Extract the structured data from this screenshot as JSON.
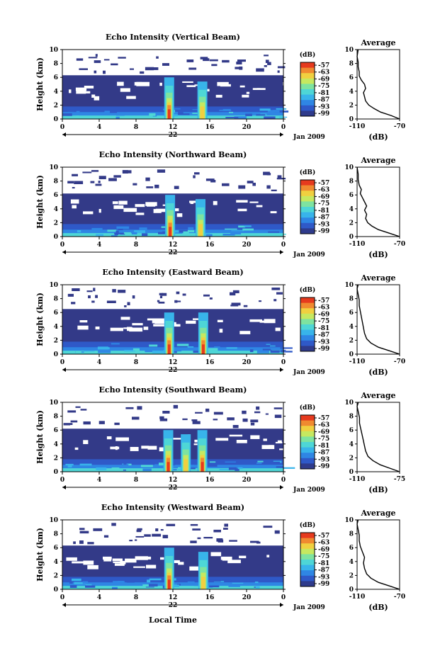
{
  "figure": {
    "x_axis_label": "Local Time",
    "date_label": "Jan 2009",
    "day_label": "22"
  },
  "colors": {
    "background": "#ffffff",
    "plot_fill": "#333a88",
    "scale": [
      "#2f3b8c",
      "#2f59c8",
      "#2f86e4",
      "#38b4ea",
      "#4ed6d6",
      "#7ee3a0",
      "#c6e860",
      "#f0d040",
      "#f08a30",
      "#e63a1e"
    ]
  },
  "chart_data": [
    {
      "type": "heatmap",
      "title": "Echo Intensity (Vertical Beam)",
      "ylabel": "Height (km)",
      "xlabel": "Local Time",
      "x_ticks": [
        "0",
        "4",
        "8",
        "12",
        "16",
        "20",
        "0"
      ],
      "xlim": [
        0,
        24
      ],
      "y_ticks": [
        "0",
        "2",
        "4",
        "6",
        "8",
        "10"
      ],
      "ylim": [
        0,
        10
      ],
      "colorbar": {
        "label": "(dB)",
        "ticks": [
          "-57",
          "-63",
          "-69",
          "-75",
          "-81",
          "-87",
          "-93",
          "-99"
        ]
      },
      "cloud_top_km": 6.3,
      "convection": [
        {
          "time": 11.6,
          "intensity": "strong"
        },
        {
          "time": 15.2,
          "intensity": "moderate"
        }
      ],
      "profile": {
        "title": "Average",
        "xlabel": "(dB)",
        "x_ticks": [
          "-110",
          "-70"
        ],
        "xlim": [
          -110,
          -70
        ],
        "y_ticks": [
          "0",
          "2",
          "4",
          "6",
          "8",
          "10"
        ],
        "points": [
          [
            -70,
            0
          ],
          [
            -78,
            0.5
          ],
          [
            -88,
            1
          ],
          [
            -94,
            1.5
          ],
          [
            -99,
            2
          ],
          [
            -102,
            2.6
          ],
          [
            -103,
            3.2
          ],
          [
            -104,
            3.8
          ],
          [
            -102,
            4.4
          ],
          [
            -103,
            5
          ],
          [
            -106,
            5.6
          ],
          [
            -108,
            6.2
          ],
          [
            -108,
            6.8
          ],
          [
            -109,
            7.5
          ],
          [
            -109,
            8.2
          ],
          [
            -110,
            9
          ],
          [
            -109,
            10
          ]
        ]
      }
    },
    {
      "type": "heatmap",
      "title": "Echo Intensity (Northward Beam)",
      "ylabel": "Height (km)",
      "xlabel": "Local Time",
      "x_ticks": [
        "0",
        "4",
        "8",
        "12",
        "16",
        "20",
        "0"
      ],
      "xlim": [
        0,
        24
      ],
      "y_ticks": [
        "0",
        "2",
        "4",
        "6",
        "8",
        "10"
      ],
      "ylim": [
        0,
        10
      ],
      "colorbar": {
        "label": "(dB)",
        "ticks": [
          "-57",
          "-63",
          "-69",
          "-75",
          "-81",
          "-87",
          "-93",
          "-99"
        ]
      },
      "cloud_top_km": 6.2,
      "convection": [
        {
          "time": 11.7,
          "intensity": "strong"
        },
        {
          "time": 15.0,
          "intensity": "moderate"
        }
      ],
      "profile": {
        "title": "Average",
        "xlabel": "(dB)",
        "x_ticks": [
          "-110",
          "-70"
        ],
        "xlim": [
          -110,
          -70
        ],
        "y_ticks": [
          "0",
          "2",
          "4",
          "6",
          "8",
          "10"
        ],
        "points": [
          [
            -70,
            0
          ],
          [
            -80,
            0.5
          ],
          [
            -90,
            1
          ],
          [
            -96,
            1.5
          ],
          [
            -100,
            2
          ],
          [
            -102,
            2.6
          ],
          [
            -101,
            3.2
          ],
          [
            -103,
            3.8
          ],
          [
            -101,
            4.4
          ],
          [
            -103,
            5
          ],
          [
            -105,
            5.6
          ],
          [
            -107,
            6.2
          ],
          [
            -106,
            6.8
          ],
          [
            -108,
            7.4
          ],
          [
            -109,
            8.2
          ],
          [
            -109,
            9
          ],
          [
            -110,
            10
          ]
        ]
      }
    },
    {
      "type": "heatmap",
      "title": "Echo Intensity (Eastward Beam)",
      "ylabel": "Height (km)",
      "xlabel": "Local Time",
      "x_ticks": [
        "0",
        "4",
        "8",
        "12",
        "16",
        "20",
        "0"
      ],
      "xlim": [
        0,
        24
      ],
      "y_ticks": [
        "0",
        "2",
        "4",
        "6",
        "8",
        "10"
      ],
      "ylim": [
        0,
        10
      ],
      "colorbar": {
        "label": "(dB)",
        "ticks": [
          "-57",
          "-63",
          "-69",
          "-75",
          "-81",
          "-87",
          "-93",
          "-99"
        ]
      },
      "cloud_top_km": 6.5,
      "convection": [
        {
          "time": 11.6,
          "intensity": "strong"
        },
        {
          "time": 15.3,
          "intensity": "strong"
        }
      ],
      "profile": {
        "title": "Average",
        "xlabel": "(dB)",
        "x_ticks": [
          "-110",
          "-70"
        ],
        "xlim": [
          -110,
          -70
        ],
        "y_ticks": [
          "0",
          "2",
          "4",
          "6",
          "8",
          "10"
        ],
        "points": [
          [
            -70,
            0
          ],
          [
            -80,
            0.5
          ],
          [
            -90,
            1
          ],
          [
            -97,
            1.6
          ],
          [
            -101,
            2.2
          ],
          [
            -103,
            3
          ],
          [
            -104,
            3.8
          ],
          [
            -105,
            4.6
          ],
          [
            -106,
            5.4
          ],
          [
            -107,
            6.2
          ],
          [
            -108,
            7
          ],
          [
            -108,
            7.8
          ],
          [
            -109,
            8.6
          ],
          [
            -110,
            9.4
          ],
          [
            -109,
            10
          ]
        ]
      }
    },
    {
      "type": "heatmap",
      "title": "Echo Intensity (Southward Beam)",
      "ylabel": "Height (km)",
      "xlabel": "Local Time",
      "x_ticks": [
        "0",
        "4",
        "8",
        "12",
        "16",
        "20",
        "0"
      ],
      "xlim": [
        0,
        24
      ],
      "y_ticks": [
        "0",
        "2",
        "4",
        "6",
        "8",
        "10"
      ],
      "ylim": [
        0,
        10
      ],
      "colorbar": {
        "label": "(dB)",
        "ticks": [
          "-57",
          "-63",
          "-69",
          "-75",
          "-81",
          "-87",
          "-93",
          "-99"
        ]
      },
      "cloud_top_km": 6.2,
      "convection": [
        {
          "time": 11.5,
          "intensity": "strong"
        },
        {
          "time": 13.4,
          "intensity": "moderate"
        },
        {
          "time": 15.2,
          "intensity": "strong"
        }
      ],
      "profile": {
        "title": "Average",
        "xlabel": "(dB)",
        "x_ticks": [
          "-110",
          "-75"
        ],
        "xlim": [
          -110,
          -75
        ],
        "y_ticks": [
          "0",
          "2",
          "4",
          "6",
          "8",
          "10"
        ],
        "points": [
          [
            -75,
            0
          ],
          [
            -83,
            0.5
          ],
          [
            -91,
            1
          ],
          [
            -97,
            1.6
          ],
          [
            -101,
            2.2
          ],
          [
            -103,
            3
          ],
          [
            -104,
            3.8
          ],
          [
            -105,
            4.6
          ],
          [
            -106,
            5.4
          ],
          [
            -107,
            6.2
          ],
          [
            -108,
            7
          ],
          [
            -108,
            7.8
          ],
          [
            -109,
            8.6
          ],
          [
            -110,
            9.4
          ],
          [
            -109,
            10
          ]
        ]
      }
    },
    {
      "type": "heatmap",
      "title": "Echo Intensity (Westward Beam)",
      "ylabel": "Height (km)",
      "xlabel": "Local Time",
      "x_ticks": [
        "0",
        "4",
        "8",
        "12",
        "16",
        "20",
        "0"
      ],
      "xlim": [
        0,
        24
      ],
      "y_ticks": [
        "0",
        "2",
        "4",
        "6",
        "8",
        "10"
      ],
      "ylim": [
        0,
        10
      ],
      "colorbar": {
        "label": "(dB)",
        "ticks": [
          "-57",
          "-63",
          "-69",
          "-75",
          "-81",
          "-87",
          "-93",
          "-99"
        ]
      },
      "cloud_top_km": 6.3,
      "convection": [
        {
          "time": 11.6,
          "intensity": "strong"
        },
        {
          "time": 15.3,
          "intensity": "moderate"
        }
      ],
      "profile": {
        "title": "Average",
        "xlabel": "(dB)",
        "x_ticks": [
          "-110",
          "-70"
        ],
        "xlim": [
          -110,
          -70
        ],
        "y_ticks": [
          "0",
          "2",
          "4",
          "6",
          "8",
          "10"
        ],
        "points": [
          [
            -70,
            0
          ],
          [
            -80,
            0.5
          ],
          [
            -90,
            1
          ],
          [
            -97,
            1.6
          ],
          [
            -101,
            2.2
          ],
          [
            -103,
            3
          ],
          [
            -104,
            3.8
          ],
          [
            -103,
            4.6
          ],
          [
            -105,
            5.4
          ],
          [
            -107,
            6.2
          ],
          [
            -108,
            7
          ],
          [
            -108,
            7.8
          ],
          [
            -109,
            8.6
          ],
          [
            -110,
            9.4
          ],
          [
            -109,
            10
          ]
        ]
      }
    }
  ]
}
